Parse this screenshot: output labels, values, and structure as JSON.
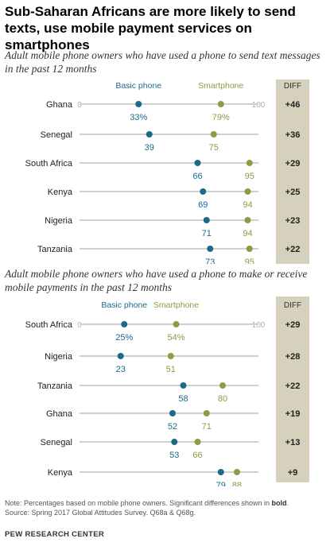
{
  "title": "Sub-Saharan Africans are more likely to send texts, use mobile payment services on smartphones",
  "note": {
    "prefix": "Note: Percentages based on mobile phone owners. Significant differences shown in ",
    "bold": "bold",
    "suffix": ".",
    "source": "Source: Spring 2017 Global Attitudes Survey. Q68a & Q68g."
  },
  "footer": "PEW RESEARCH CENTER",
  "colors": {
    "basic": "#1b6a8c",
    "smart": "#8f9a42",
    "diff_bg": "#d5d1bd",
    "line": "#d0d0d0",
    "axis_text": "#b0b0b0"
  },
  "chart_data": [
    {
      "type": "dot",
      "title": "Adult mobile phone owners who have used a phone to send text messages in the past 12 months",
      "xlim": [
        0,
        100
      ],
      "axis_ticks": [
        "0",
        "100"
      ],
      "diff_header": "DIFF",
      "categories": [
        "Ghana",
        "Senegal",
        "South Africa",
        "Kenya",
        "Nigeria",
        "Tanzania"
      ],
      "series": [
        {
          "name": "Basic phone",
          "values": [
            33,
            39,
            66,
            69,
            71,
            73
          ],
          "labels": [
            "33%",
            "39",
            "66",
            "69",
            "71",
            "73"
          ]
        },
        {
          "name": "Smartphone",
          "values": [
            79,
            75,
            95,
            94,
            94,
            95
          ],
          "labels": [
            "79%",
            "75",
            "95",
            "94",
            "94",
            "95"
          ]
        }
      ],
      "diff": [
        "+46",
        "+36",
        "+29",
        "+25",
        "+23",
        "+22"
      ]
    },
    {
      "type": "dot",
      "title": "Adult mobile phone owners who have used a phone to make or receive mobile payments in the past 12 months",
      "xlim": [
        0,
        100
      ],
      "axis_ticks": [
        "0",
        "100"
      ],
      "diff_header": "DIFF",
      "categories": [
        "South Africa",
        "Nigeria",
        "Tanzania",
        "Ghana",
        "Senegal",
        "Kenya"
      ],
      "series": [
        {
          "name": "Basic phone",
          "values": [
            25,
            23,
            58,
            52,
            53,
            79
          ],
          "labels": [
            "25%",
            "23",
            "58",
            "52",
            "53",
            "79"
          ]
        },
        {
          "name": "Smartphone",
          "values": [
            54,
            51,
            80,
            71,
            66,
            88
          ],
          "labels": [
            "54%",
            "51",
            "80",
            "71",
            "66",
            "88"
          ]
        }
      ],
      "diff": [
        "+29",
        "+28",
        "+22",
        "+19",
        "+13",
        "+9"
      ]
    }
  ]
}
